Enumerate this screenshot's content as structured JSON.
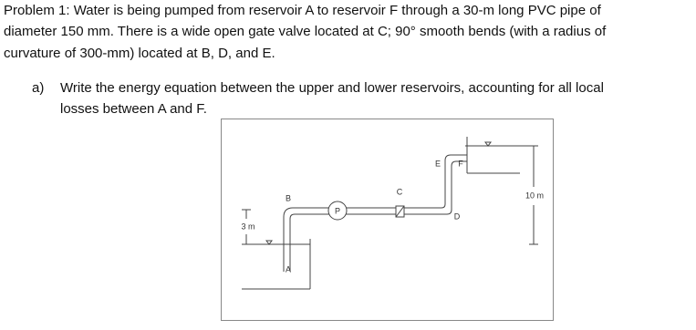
{
  "problem": {
    "lines": [
      "Problem 1: Water is being pumped from reservoir A to reservoir F through a 30-m long PVC pipe of",
      "diameter 150 mm. There is a wide open gate valve located at C; 90° smooth bends (with a radius of",
      "curvature of 300-mm) located at B, D, and E."
    ]
  },
  "questions": [
    {
      "marker": "a)",
      "lines": [
        "Write the energy equation between the upper and lower reservoirs, accounting for all local",
        "losses between A and F."
      ]
    }
  ],
  "figure": {
    "labels": {
      "A": "A",
      "B": "B",
      "C": "C",
      "D": "D",
      "E": "E",
      "F": "F",
      "P": "P"
    },
    "dimensions": {
      "lower": "3 m",
      "total": "10 m"
    }
  }
}
